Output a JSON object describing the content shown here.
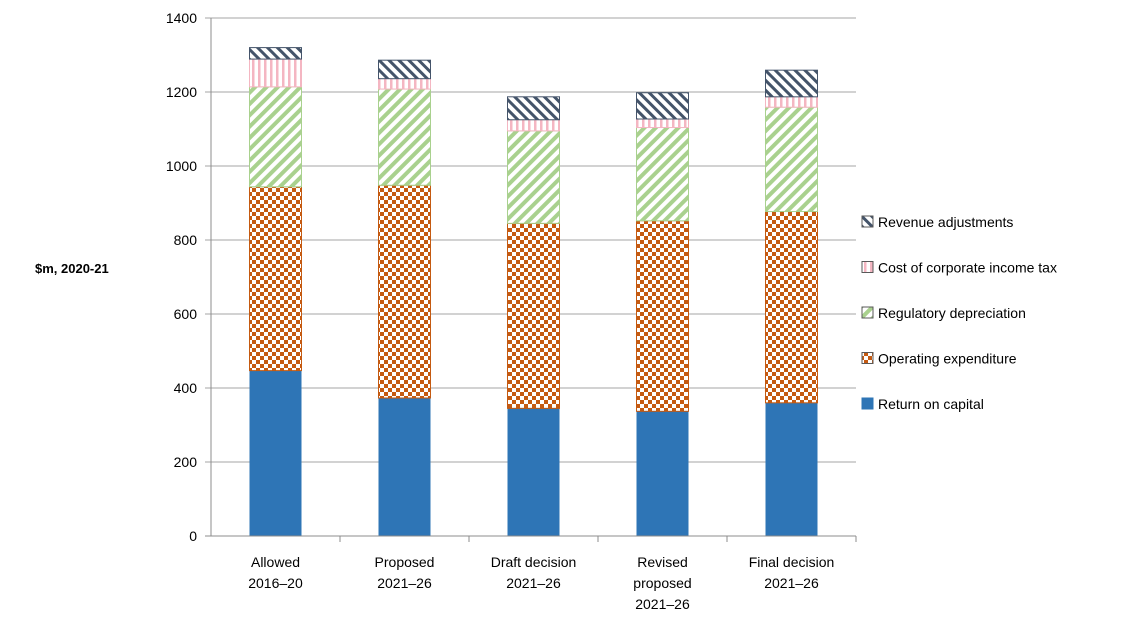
{
  "chart_data": {
    "type": "bar",
    "stacked": true,
    "ylabel": "$m, 2020-21",
    "ylim": [
      0,
      1400
    ],
    "yticks": [
      0,
      200,
      400,
      600,
      800,
      1000,
      1200,
      1400
    ],
    "grid": true,
    "legend_position": "right",
    "categories": [
      [
        "Allowed",
        "2016–20"
      ],
      [
        "Proposed",
        "2021–26"
      ],
      [
        "Draft decision",
        "2021–26"
      ],
      [
        "Revised",
        "proposed",
        "2021–26"
      ],
      [
        "Final decision",
        "2021–26"
      ]
    ],
    "series": [
      {
        "name": "Return on capital",
        "color": "#2e75b6",
        "pattern": "solid",
        "values": [
          447,
          373,
          345,
          337,
          360
        ]
      },
      {
        "name": "Operating expenditure",
        "color": "#c55a11",
        "pattern": "checker",
        "values": [
          497,
          575,
          500,
          515,
          517
        ]
      },
      {
        "name": "Regulatory depreciation",
        "color": "#a9d18e",
        "pattern": "diagonal",
        "values": [
          270,
          260,
          250,
          252,
          282
        ]
      },
      {
        "name": "Cost of corporate income tax",
        "color": "#f4b6c2",
        "pattern": "vertical",
        "values": [
          75,
          28,
          30,
          23,
          28
        ]
      },
      {
        "name": "Revenue adjustments",
        "color": "#44546a",
        "pattern": "hatch",
        "values": [
          31,
          50,
          62,
          71,
          72
        ]
      }
    ]
  }
}
